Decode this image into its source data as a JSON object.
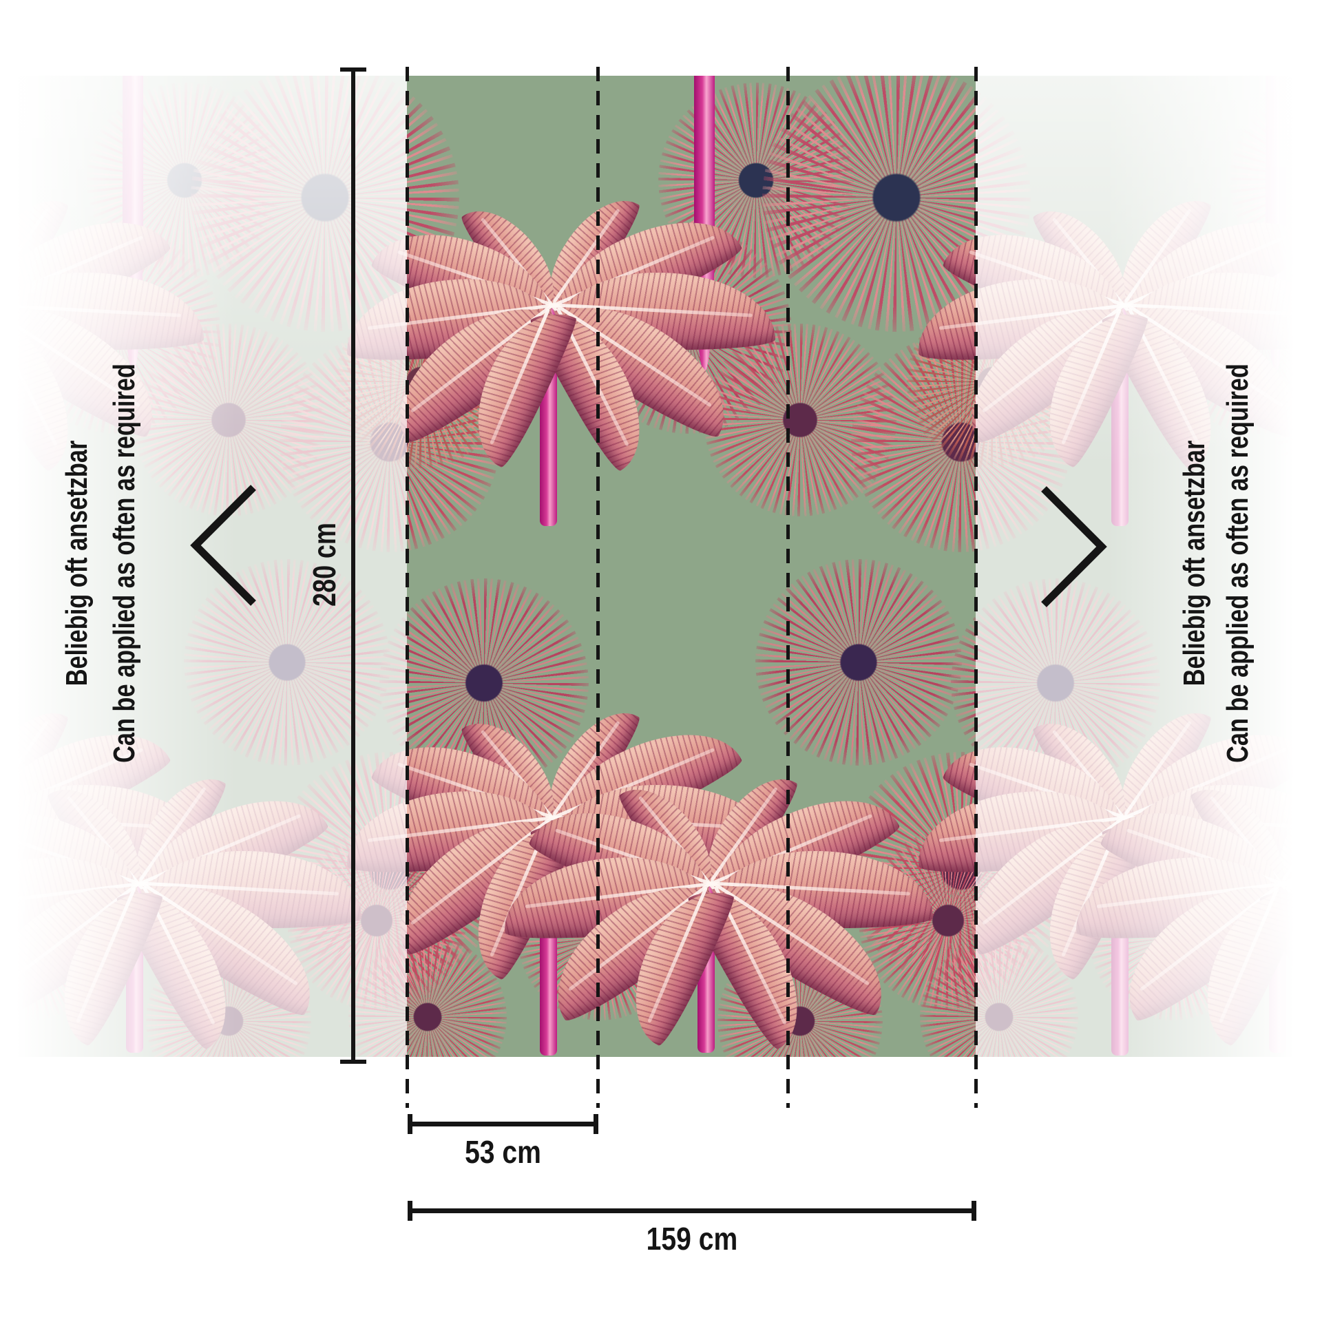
{
  "diagram": {
    "height_label": "280 cm",
    "panel_width_label": "53 cm",
    "total_width_label": "159 cm",
    "side_note": {
      "de": "Beliebig oft ansetzbar",
      "en": "Can be applied as often as required"
    }
  },
  "icons": {
    "left": "chevron-left",
    "right": "chevron-right"
  },
  "colors": {
    "background_green": "#8ea689",
    "measurement_black": "#151515",
    "trunk_magenta": "#d63a96",
    "ray_crimson": "#c24b61",
    "leaf_salmon": "#e29d92"
  }
}
